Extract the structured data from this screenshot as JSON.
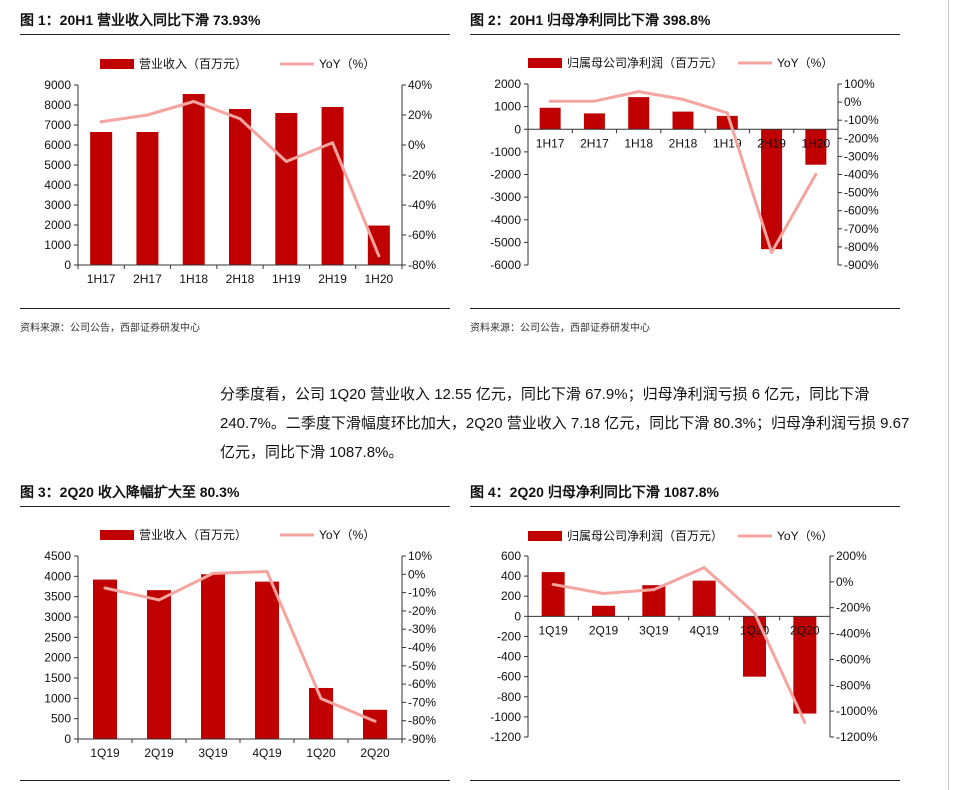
{
  "colors": {
    "bar": "#c00000",
    "line": "#f4a5a0",
    "axis": "#333333"
  },
  "paragraph": "分季度看，公司 1Q20 营业收入 12.55 亿元，同比下滑 67.9%；归母净利润亏损 6 亿元，同比下滑 240.7%。二季度下滑幅度环比加大，2Q20 营业收入 7.18 亿元，同比下滑 80.3%；归母净利润亏损 9.67 亿元，同比下滑 1087.8%。",
  "figures": [
    {
      "title": "图 1：20H1 营业收入同比下滑 73.93%",
      "source": "资料来源：公司公告，西部证券研发中心"
    },
    {
      "title": "图 2：20H1 归母净利同比下滑 398.8%",
      "source": "资料来源：公司公告，西部证券研发中心"
    },
    {
      "title": "图 3：2Q20 收入降幅扩大至 80.3%"
    },
    {
      "title": "图 4：2Q20 归母净利同比下滑 1087.8%"
    }
  ],
  "chart_data": [
    {
      "type": "bar+line",
      "categories": [
        "1H17",
        "2H17",
        "1H18",
        "2H18",
        "1H19",
        "2H19",
        "1H20"
      ],
      "series": [
        {
          "name": "营业收入（百万元）",
          "type": "bar",
          "axis": "left",
          "values": [
            6650,
            6650,
            8550,
            7800,
            7600,
            7900,
            1973
          ]
        },
        {
          "name": "YoY（%）",
          "type": "line",
          "axis": "right",
          "values": [
            15.5,
            20,
            29,
            17.5,
            -11,
            1.5,
            -73.93
          ]
        }
      ],
      "ylim_left": [
        0,
        9000
      ],
      "yticks_left": [
        0,
        1000,
        2000,
        3000,
        4000,
        5000,
        6000,
        7000,
        8000,
        9000
      ],
      "ylim_right": [
        -80,
        40
      ],
      "yticks_right": [
        -80,
        -60,
        -40,
        -20,
        0,
        20,
        40
      ],
      "legend": "top",
      "grid": false
    },
    {
      "type": "bar+line",
      "categories": [
        "1H17",
        "2H17",
        "1H18",
        "2H18",
        "1H19",
        "2H19",
        "1H20"
      ],
      "series": [
        {
          "name": "归属母公司净利润（百万元）",
          "type": "bar",
          "axis": "left",
          "values": [
            950,
            700,
            1420,
            780,
            590,
            -5300,
            -1567
          ]
        },
        {
          "name": "YoY（%）",
          "type": "line",
          "axis": "right",
          "values": [
            5,
            5,
            58,
            15,
            -60,
            -830,
            -398.8
          ]
        }
      ],
      "ylim_left": [
        -6000,
        2000
      ],
      "yticks_left": [
        -6000,
        -5000,
        -4000,
        -3000,
        -2000,
        -1000,
        0,
        1000,
        2000
      ],
      "ylim_right": [
        -900,
        100
      ],
      "yticks_right": [
        -900,
        -800,
        -700,
        -600,
        -500,
        -400,
        -300,
        -200,
        -100,
        0,
        100
      ],
      "legend": "top",
      "grid": false
    },
    {
      "type": "bar+line",
      "categories": [
        "1Q19",
        "2Q19",
        "3Q19",
        "4Q19",
        "1Q20",
        "2Q20"
      ],
      "series": [
        {
          "name": "营业收入（百万元）",
          "type": "bar",
          "axis": "left",
          "values": [
            3920,
            3660,
            4050,
            3870,
            1255,
            718
          ]
        },
        {
          "name": "YoY（%）",
          "type": "line",
          "axis": "right",
          "values": [
            -7.5,
            -14,
            0.5,
            1.5,
            -67.9,
            -80.3
          ]
        }
      ],
      "ylim_left": [
        0,
        4500
      ],
      "yticks_left": [
        0,
        500,
        1000,
        1500,
        2000,
        2500,
        3000,
        3500,
        4000,
        4500
      ],
      "ylim_right": [
        -90,
        10
      ],
      "yticks_right": [
        -90,
        -80,
        -70,
        -60,
        -50,
        -40,
        -30,
        -20,
        -10,
        0,
        10
      ],
      "legend": "top",
      "grid": false
    },
    {
      "type": "bar+line",
      "categories": [
        "1Q19",
        "2Q19",
        "3Q19",
        "4Q19",
        "1Q20",
        "2Q20"
      ],
      "series": [
        {
          "name": "归属母公司净利润（百万元）",
          "type": "bar",
          "axis": "left",
          "values": [
            440,
            105,
            310,
            355,
            -600,
            -967
          ]
        },
        {
          "name": "YoY（%）",
          "type": "line",
          "axis": "right",
          "values": [
            -20,
            -90,
            -60,
            110,
            -240.7,
            -1087.8
          ]
        }
      ],
      "ylim_left": [
        -1200,
        600
      ],
      "yticks_left": [
        -1200,
        -1000,
        -800,
        -600,
        -400,
        -200,
        0,
        200,
        400,
        600
      ],
      "ylim_right": [
        -1200,
        200
      ],
      "yticks_right": [
        -1200,
        -1000,
        -800,
        -600,
        -400,
        -200,
        0,
        200
      ],
      "legend": "top",
      "grid": false
    }
  ]
}
